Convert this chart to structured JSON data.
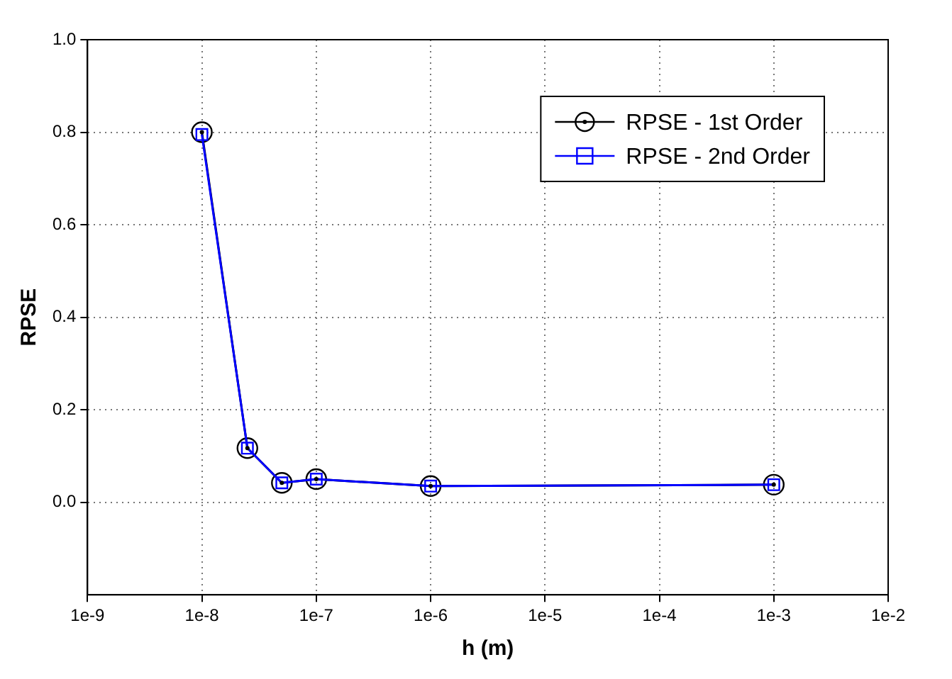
{
  "chart_data": {
    "type": "line",
    "xlabel": "h (m)",
    "ylabel": "RPSE",
    "log": "x",
    "x": [
      1e-08,
      2.5e-08,
      5e-08,
      1e-07,
      1e-06,
      0.001
    ],
    "series": [
      {
        "name": "RPSE - 1st Order",
        "color": "#000000",
        "marker": "circle",
        "values": [
          0.8,
          0.117,
          0.042,
          0.05,
          0.035,
          0.038
        ]
      },
      {
        "name": "RPSE - 2nd Order",
        "color": "#0000ff",
        "marker": "square",
        "values": [
          0.795,
          0.117,
          0.042,
          0.05,
          0.035,
          0.038
        ]
      }
    ],
    "xlim": [
      1e-09,
      0.01
    ],
    "xticks": [
      {
        "value": 1e-09,
        "label": "1e-9"
      },
      {
        "value": 1e-08,
        "label": "1e-8"
      },
      {
        "value": 1e-07,
        "label": "1e-7"
      },
      {
        "value": 1e-06,
        "label": "1e-6"
      },
      {
        "value": 1e-05,
        "label": "1e-5"
      },
      {
        "value": 0.0001,
        "label": "1e-4"
      },
      {
        "value": 0.001,
        "label": "1e-3"
      },
      {
        "value": 0.01,
        "label": "1e-2"
      }
    ],
    "ylim": [
      -0.2,
      1.0
    ],
    "yticks": [
      {
        "value": 0,
        "label": "0.0"
      },
      {
        "value": 0.2,
        "label": "0.2"
      },
      {
        "value": 0.4,
        "label": "0.4"
      },
      {
        "value": 0.6,
        "label": "0.6"
      },
      {
        "value": 0.8,
        "label": "0.8"
      },
      {
        "value": 1.0,
        "label": "1.0"
      }
    ],
    "grid": true,
    "legend": "top right",
    "line_style": "solid"
  }
}
